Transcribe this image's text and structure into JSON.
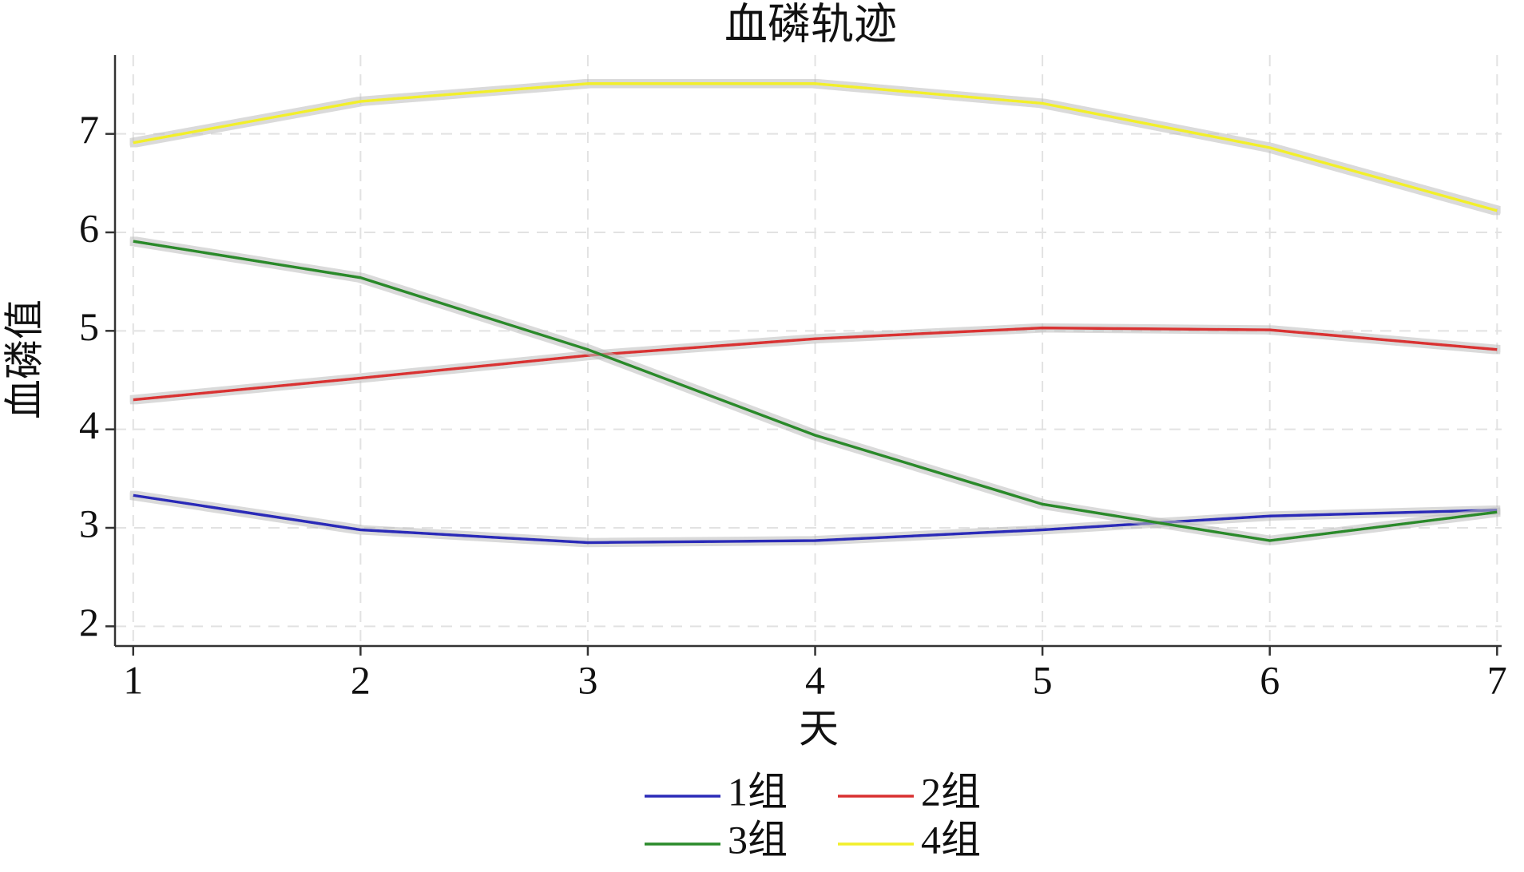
{
  "chart_data": {
    "type": "line",
    "title": "血磷轨迹",
    "x_label": "天",
    "y_label": "血磷值",
    "x": [
      1,
      2,
      3,
      4,
      5,
      6,
      7
    ],
    "xlim": [
      0.92,
      7.02
    ],
    "xticks": [
      1,
      2,
      3,
      4,
      5,
      6,
      7
    ],
    "ylim": [
      1.8,
      7.8
    ],
    "yticks": [
      2,
      3,
      4,
      5,
      6,
      7
    ],
    "grid": true,
    "legend": "bottom",
    "series": [
      {
        "name": "1组",
        "color": "#2b2bb8",
        "values": [
          3.33,
          2.98,
          2.85,
          2.87,
          2.98,
          3.12,
          3.18
        ]
      },
      {
        "name": "2组",
        "color": "#d93030",
        "values": [
          4.3,
          4.52,
          4.75,
          4.92,
          5.03,
          5.01,
          4.81
        ]
      },
      {
        "name": "3组",
        "color": "#2a8a2a",
        "values": [
          5.91,
          5.54,
          4.81,
          3.94,
          3.24,
          2.87,
          3.16
        ]
      },
      {
        "name": "4组",
        "color": "#f2ef2a",
        "values": [
          6.91,
          7.33,
          7.51,
          7.51,
          7.31,
          6.86,
          6.22
        ]
      }
    ]
  }
}
